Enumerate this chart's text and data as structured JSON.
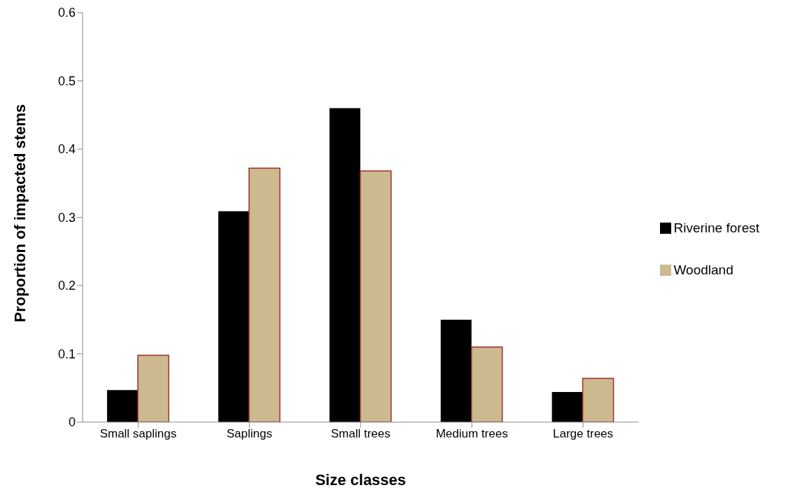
{
  "chart_data": {
    "type": "bar",
    "xlabel": "Size classes",
    "ylabel": "Proportion of impacted stems",
    "categories": [
      "Small saplings",
      "Saplings",
      "Small trees",
      "Medium trees",
      "Large trees"
    ],
    "series": [
      {
        "name": "Riverine forest",
        "color": "#000000",
        "values": [
          0.047,
          0.309,
          0.46,
          0.15,
          0.044
        ]
      },
      {
        "name": "Woodland",
        "color": "#cdb98f",
        "values": [
          0.098,
          0.372,
          0.368,
          0.11,
          0.064
        ]
      }
    ],
    "ylim": [
      0,
      0.6
    ],
    "yticks": [
      0,
      0.1,
      0.2,
      0.3,
      0.4,
      0.5,
      0.6
    ],
    "grid": false,
    "legend": "right"
  }
}
